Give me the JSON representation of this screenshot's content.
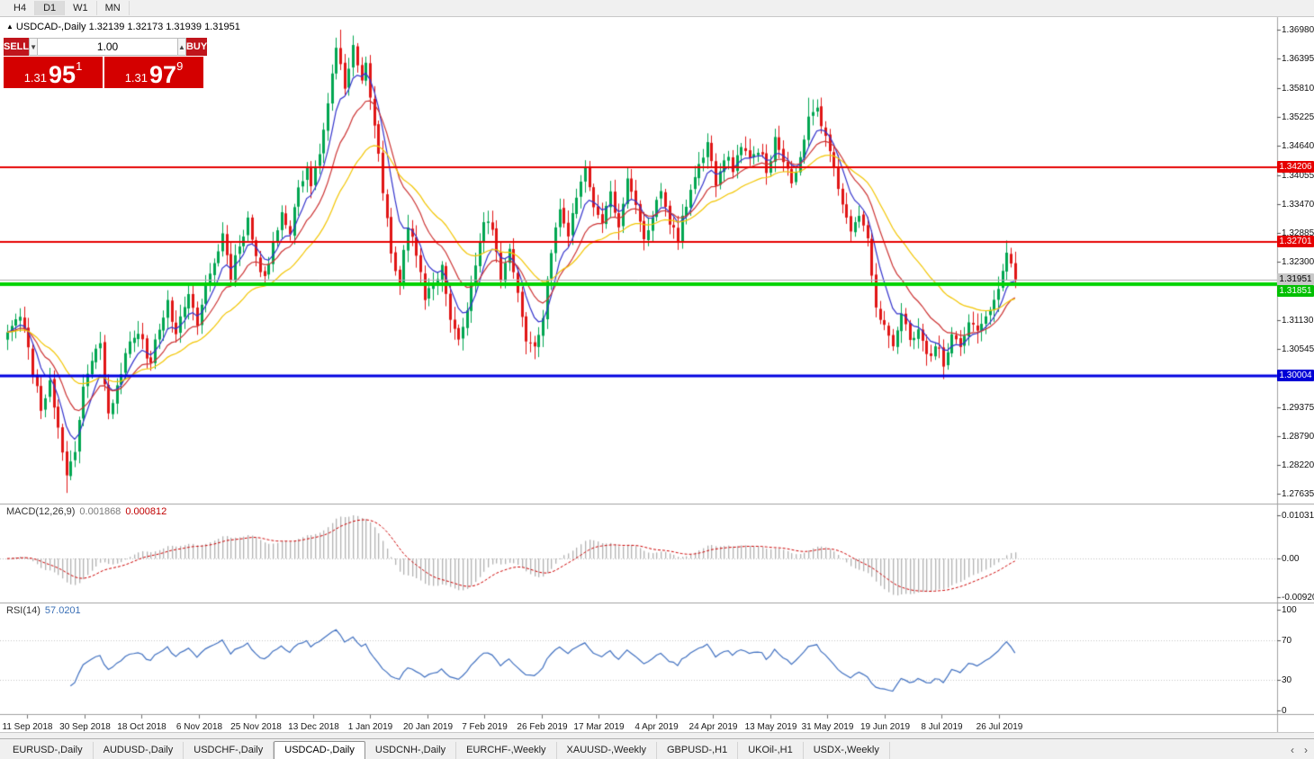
{
  "toolbar": {
    "timeframes": [
      {
        "label": "H4",
        "active": false
      },
      {
        "label": "D1",
        "active": true
      },
      {
        "label": "W1",
        "active": false
      },
      {
        "label": "MN",
        "active": false
      }
    ]
  },
  "chart": {
    "collapse_icon": "▲",
    "title": {
      "symbol": "USDCAD-,Daily",
      "ohlc": "1.32139 1.32173 1.31939 1.31951"
    },
    "one_click": {
      "sell_label": "SELL",
      "buy_label": "BUY",
      "volume": "1.00",
      "spinner_down": "▼",
      "spinner_up": "▲",
      "bid": {
        "prefix": "1.31",
        "big": "95",
        "sup": "1"
      },
      "ask": {
        "prefix": "1.31",
        "big": "97",
        "sup": "9"
      }
    }
  },
  "chart_data": {
    "type": "candlestick",
    "symbol": "USDCAD",
    "timeframe": "Daily",
    "ohlc_display": {
      "open": "1.32139",
      "high": "1.32173",
      "low": "1.31939",
      "close": "1.31951"
    },
    "price_axis": {
      "max": 1.3698,
      "min": 1.27635,
      "ticks": [
        "1.36980",
        "1.36395",
        "1.35810",
        "1.35225",
        "1.34640",
        "1.34055",
        "1.33470",
        "1.32885",
        "1.32300",
        "1.31715",
        "1.31130",
        "1.30545",
        "1.29960",
        "1.29375",
        "1.28790",
        "1.28220",
        "1.27635"
      ]
    },
    "hlines": [
      {
        "value": 1.34206,
        "label": "1.34206",
        "color": "#e60000",
        "width": 2,
        "label_bg": "#e60000",
        "label_fg": "#ffffff"
      },
      {
        "value": 1.32701,
        "label": "1.32701",
        "color": "#e60000",
        "width": 2,
        "label_bg": "#e60000",
        "label_fg": "#ffffff"
      },
      {
        "value": 1.31851,
        "label": "1.31851",
        "color": "#00d200",
        "width": 4,
        "label_bg": "#00c000",
        "label_fg": "#ffffff"
      },
      {
        "value": 1.30004,
        "label": "1.30004",
        "color": "#0000e0",
        "width": 3,
        "label_bg": "#0000d6",
        "label_fg": "#ffffff"
      }
    ],
    "bid_line": {
      "value": 1.31951,
      "label": "1.31951",
      "color": "#ababab",
      "width": 1,
      "label_bg": "#c8c8c8",
      "label_fg": "#000000"
    },
    "moving_averages": [
      {
        "period": 7,
        "type": "ema",
        "color": "#3333cc"
      },
      {
        "period": 15,
        "type": "ema",
        "color": "#cc3333"
      },
      {
        "period": 30,
        "type": "ema",
        "color": "#f2c500"
      }
    ],
    "candles": {
      "count": 240,
      "up_color": "#00a651",
      "down_color": "#e01515",
      "noise": 0.0012,
      "seed": 11,
      "keypoints": [
        [
          0,
          1.3095
        ],
        [
          3,
          1.313
        ],
        [
          6,
          1.301
        ],
        [
          8,
          1.294
        ],
        [
          10,
          1.2985
        ],
        [
          12,
          1.29
        ],
        [
          14,
          1.28
        ],
        [
          16,
          1.285
        ],
        [
          18,
          1.2975
        ],
        [
          20,
          1.304
        ],
        [
          22,
          1.306
        ],
        [
          24,
          1.293
        ],
        [
          26,
          1.298
        ],
        [
          28,
          1.305
        ],
        [
          31,
          1.308
        ],
        [
          34,
          1.303
        ],
        [
          36,
          1.3105
        ],
        [
          38,
          1.3145
        ],
        [
          40,
          1.309
        ],
        [
          43,
          1.3155
        ],
        [
          45,
          1.311
        ],
        [
          47,
          1.318
        ],
        [
          49,
          1.323
        ],
        [
          51,
          1.3285
        ],
        [
          53,
          1.3205
        ],
        [
          55,
          1.327
        ],
        [
          57,
          1.3315
        ],
        [
          59,
          1.324
        ],
        [
          61,
          1.319
        ],
        [
          63,
          1.328
        ],
        [
          65,
          1.333
        ],
        [
          67,
          1.329
        ],
        [
          69,
          1.338
        ],
        [
          71,
          1.342
        ],
        [
          72,
          1.339
        ],
        [
          74,
          1.345
        ],
        [
          76,
          1.356
        ],
        [
          78,
          1.365
        ],
        [
          79,
          1.364
        ],
        [
          80,
          1.3585
        ],
        [
          82,
          1.366
        ],
        [
          84,
          1.36
        ],
        [
          85,
          1.362
        ],
        [
          87,
          1.35
        ],
        [
          89,
          1.338
        ],
        [
          91,
          1.325
        ],
        [
          93,
          1.319
        ],
        [
          95,
          1.33
        ],
        [
          97,
          1.324
        ],
        [
          99,
          1.316
        ],
        [
          103,
          1.322
        ],
        [
          105,
          1.312
        ],
        [
          107,
          1.307
        ],
        [
          109,
          1.313
        ],
        [
          111,
          1.322
        ],
        [
          113,
          1.332
        ],
        [
          115,
          1.329
        ],
        [
          117,
          1.32
        ],
        [
          119,
          1.326
        ],
        [
          121,
          1.318
        ],
        [
          123,
          1.308
        ],
        [
          125,
          1.305
        ],
        [
          127,
          1.312
        ],
        [
          129,
          1.325
        ],
        [
          131,
          1.333
        ],
        [
          133,
          1.329
        ],
        [
          135,
          1.336
        ],
        [
          137,
          1.343
        ],
        [
          139,
          1.334
        ],
        [
          141,
          1.331
        ],
        [
          143,
          1.337
        ],
        [
          145,
          1.33
        ],
        [
          147,
          1.3395
        ],
        [
          149,
          1.334
        ],
        [
          151,
          1.327
        ],
        [
          153,
          1.333
        ],
        [
          155,
          1.337
        ],
        [
          157,
          1.331
        ],
        [
          159,
          1.328
        ],
        [
          161,
          1.335
        ],
        [
          163,
          1.339
        ],
        [
          165,
          1.345
        ],
        [
          166,
          1.346
        ],
        [
          168,
          1.339
        ],
        [
          170,
          1.344
        ],
        [
          172,
          1.342
        ],
        [
          174,
          1.347
        ],
        [
          176,
          1.343
        ],
        [
          178,
          1.346
        ],
        [
          180,
          1.342
        ],
        [
          182,
          1.347
        ],
        [
          184,
          1.344
        ],
        [
          186,
          1.34
        ],
        [
          188,
          1.344
        ],
        [
          190,
          1.353
        ],
        [
          192,
          1.3545
        ],
        [
          194,
          1.348
        ],
        [
          196,
          1.342
        ],
        [
          198,
          1.335
        ],
        [
          200,
          1.328
        ],
        [
          202,
          1.333
        ],
        [
          204,
          1.327
        ],
        [
          206,
          1.315
        ],
        [
          208,
          1.31
        ],
        [
          210,
          1.306
        ],
        [
          212,
          1.312
        ],
        [
          214,
          1.307
        ],
        [
          216,
          1.309
        ],
        [
          218,
          1.304
        ],
        [
          220,
          1.306
        ],
        [
          222,
          1.303
        ],
        [
          224,
          1.308
        ],
        [
          226,
          1.305
        ],
        [
          228,
          1.312
        ],
        [
          230,
          1.308
        ],
        [
          232,
          1.311
        ],
        [
          234,
          1.316
        ],
        [
          235,
          1.318
        ],
        [
          237,
          1.3245
        ],
        [
          238,
          1.323
        ],
        [
          239,
          1.31951
        ]
      ],
      "wick_overrides": {
        "14": {
          "low": 1.2765
        },
        "79": {
          "high": 1.3698
        },
        "190": {
          "high": 1.3561
        },
        "222": {
          "low": 1.3018
        }
      }
    },
    "macd": {
      "name": "MACD(12,26,9)",
      "value_main": "0.001868",
      "value_signal": "0.000812",
      "fast": 12,
      "slow": 26,
      "signal": 9,
      "max": 0.010311,
      "min": -0.009203,
      "axis_labels": [
        "0.010311",
        "0.00",
        "-0.009203"
      ],
      "hist_color": "#b2b2b2",
      "signal_color": "#cc0000"
    },
    "rsi": {
      "name": "RSI(14)",
      "value": "57.0201",
      "period": 14,
      "max": 100,
      "min": 0,
      "levels": [
        70,
        30
      ],
      "axis_labels": [
        "100",
        "70",
        "30",
        "0"
      ],
      "color": "#4070c0"
    },
    "x_axis": {
      "dates": [
        "11 Sep 2018",
        "30 Sep 2018",
        "18 Oct 2018",
        "6 Nov 2018",
        "25 Nov 2018",
        "13 Dec 2018",
        "1 Jan 2019",
        "20 Jan 2019",
        "7 Feb 2019",
        "26 Feb 2019",
        "17 Mar 2019",
        "4 Apr 2019",
        "24 Apr 2019",
        "13 May 2019",
        "31 May 2019",
        "19 Jun 2019",
        "8 Jul 2019",
        "26 Jul 2019"
      ]
    }
  },
  "tabs": {
    "items": [
      "EURUSD-,Daily",
      "AUDUSD-,Daily",
      "USDCHF-,Daily",
      "USDCAD-,Daily",
      "USDCNH-,Daily",
      "EURCHF-,Weekly",
      "XAUUSD-,Weekly",
      "GBPUSD-,H1",
      "UKOil-,H1",
      "USDX-,Weekly"
    ],
    "active_index": 3,
    "scroll_left_icon": "‹",
    "scroll_right_icon": "›"
  }
}
